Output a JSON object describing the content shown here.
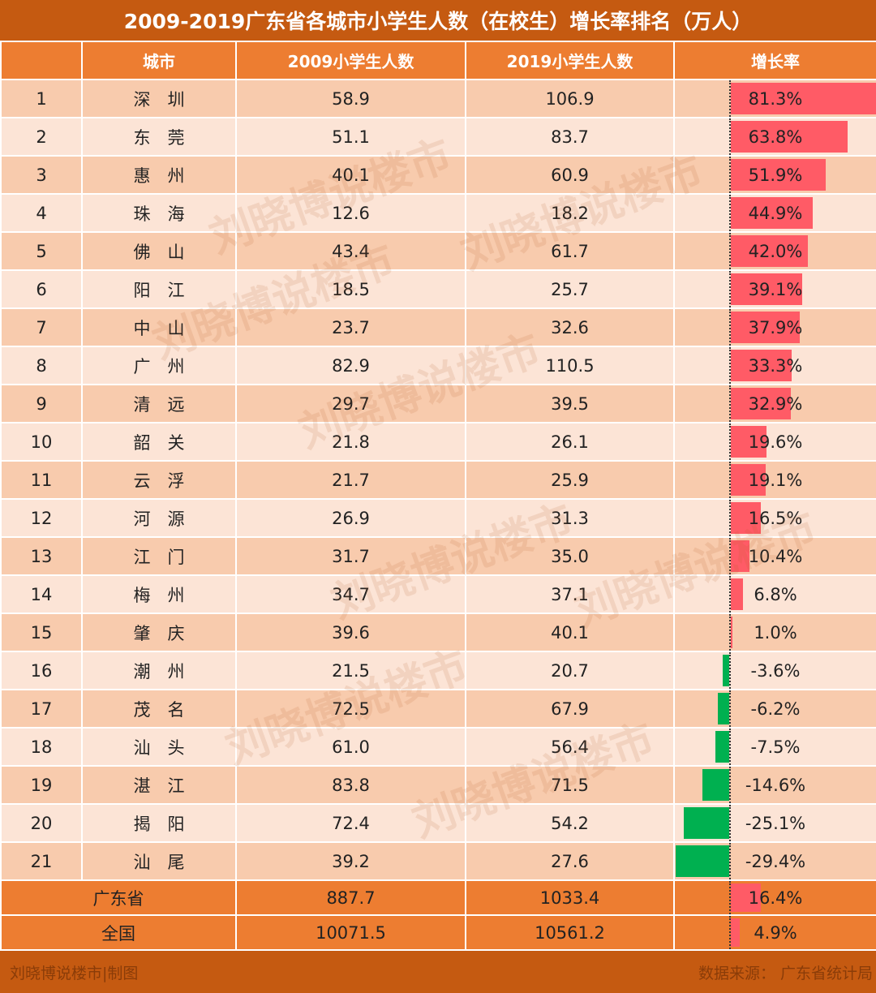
{
  "title": "2009-2019广东省各城市小学生人数（在校生）增长率排名（万人）",
  "headers": [
    "",
    "城市",
    "2009小学生人数",
    "2019小学生人数",
    "增长率"
  ],
  "colors": {
    "title_bg": "#C55A11",
    "header_bg": "#ED7D31",
    "row_odd": "#F8CBAD",
    "row_even": "#FCE4D6",
    "positive_bar": "#FF5B66",
    "negative_bar": "#00B050"
  },
  "chart_data": {
    "type": "table",
    "title": "2009-2019广东省各城市小学生人数（在校生）增长率排名（万人）",
    "columns": [
      "",
      "城市",
      "2009小学生人数",
      "2019小学生人数",
      "增长率"
    ],
    "rows": [
      {
        "rank": "1",
        "city": "深　圳",
        "v2009": "58.9",
        "v2019": "106.9",
        "rate": "81.3%",
        "rate_value": 81.3
      },
      {
        "rank": "2",
        "city": "东　莞",
        "v2009": "51.1",
        "v2019": "83.7",
        "rate": "63.8%",
        "rate_value": 63.8
      },
      {
        "rank": "3",
        "city": "惠　州",
        "v2009": "40.1",
        "v2019": "60.9",
        "rate": "51.9%",
        "rate_value": 51.9
      },
      {
        "rank": "4",
        "city": "珠　海",
        "v2009": "12.6",
        "v2019": "18.2",
        "rate": "44.9%",
        "rate_value": 44.9
      },
      {
        "rank": "5",
        "city": "佛　山",
        "v2009": "43.4",
        "v2019": "61.7",
        "rate": "42.0%",
        "rate_value": 42.0
      },
      {
        "rank": "6",
        "city": "阳　江",
        "v2009": "18.5",
        "v2019": "25.7",
        "rate": "39.1%",
        "rate_value": 39.1
      },
      {
        "rank": "7",
        "city": "中　山",
        "v2009": "23.7",
        "v2019": "32.6",
        "rate": "37.9%",
        "rate_value": 37.9
      },
      {
        "rank": "8",
        "city": "广　州",
        "v2009": "82.9",
        "v2019": "110.5",
        "rate": "33.3%",
        "rate_value": 33.3
      },
      {
        "rank": "9",
        "city": "清　远",
        "v2009": "29.7",
        "v2019": "39.5",
        "rate": "32.9%",
        "rate_value": 32.9
      },
      {
        "rank": "10",
        "city": "韶　关",
        "v2009": "21.8",
        "v2019": "26.1",
        "rate": "19.6%",
        "rate_value": 19.6
      },
      {
        "rank": "11",
        "city": "云　浮",
        "v2009": "21.7",
        "v2019": "25.9",
        "rate": "19.1%",
        "rate_value": 19.1
      },
      {
        "rank": "12",
        "city": "河　源",
        "v2009": "26.9",
        "v2019": "31.3",
        "rate": "16.5%",
        "rate_value": 16.5
      },
      {
        "rank": "13",
        "city": "江　门",
        "v2009": "31.7",
        "v2019": "35.0",
        "rate": "10.4%",
        "rate_value": 10.4
      },
      {
        "rank": "14",
        "city": "梅　州",
        "v2009": "34.7",
        "v2019": "37.1",
        "rate": "6.8%",
        "rate_value": 6.8
      },
      {
        "rank": "15",
        "city": "肇　庆",
        "v2009": "39.6",
        "v2019": "40.1",
        "rate": "1.0%",
        "rate_value": 1.0
      },
      {
        "rank": "16",
        "city": "潮　州",
        "v2009": "21.5",
        "v2019": "20.7",
        "rate": "-3.6%",
        "rate_value": -3.6
      },
      {
        "rank": "17",
        "city": "茂　名",
        "v2009": "72.5",
        "v2019": "67.9",
        "rate": "-6.2%",
        "rate_value": -6.2
      },
      {
        "rank": "18",
        "city": "汕　头",
        "v2009": "61.0",
        "v2019": "56.4",
        "rate": "-7.5%",
        "rate_value": -7.5
      },
      {
        "rank": "19",
        "city": "湛　江",
        "v2009": "83.8",
        "v2019": "71.5",
        "rate": "-14.6%",
        "rate_value": -14.6
      },
      {
        "rank": "20",
        "city": "揭　阳",
        "v2009": "72.4",
        "v2019": "54.2",
        "rate": "-25.1%",
        "rate_value": -25.1
      },
      {
        "rank": "21",
        "city": "汕　尾",
        "v2009": "39.2",
        "v2019": "27.6",
        "rate": "-29.4%",
        "rate_value": -29.4
      }
    ],
    "summary": [
      {
        "label": "广东省",
        "v2009": "887.7",
        "v2019": "1033.4",
        "rate": "16.4%",
        "rate_value": 16.4
      },
      {
        "label": "全国",
        "v2009": "10071.5",
        "v2019": "10561.2",
        "rate": "4.9%",
        "rate_value": 4.9
      }
    ]
  },
  "footer": {
    "left": "刘晓博说楼市|制图",
    "right": "数据来源：  广东省统计局"
  },
  "watermark": "刘晓博说楼市"
}
